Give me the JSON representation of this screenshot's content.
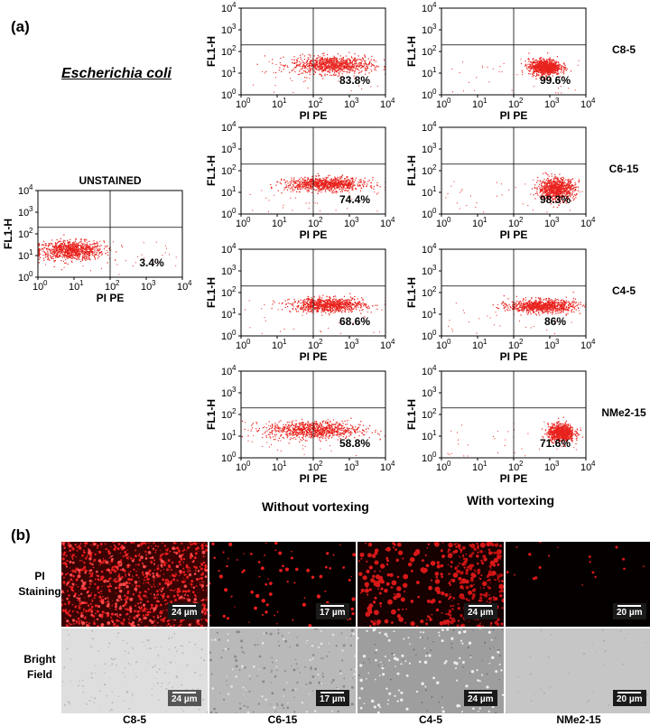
{
  "panel_a_label": "(a)",
  "panel_b_label": "(b)",
  "organism": "Escherichia coli",
  "col_without": "Without vortexing",
  "col_with": "With vortexing",
  "colors": {
    "dots": "#e8221d",
    "axis": "#000000"
  },
  "chart_data": [
    {
      "id": "unstained",
      "type": "scatter",
      "title": "UNSTAINED",
      "xlabel": "PI PE",
      "ylabel": "FL1-H",
      "x_scale": "log",
      "y_scale": "log",
      "xlim": [
        1,
        10000
      ],
      "ylim": [
        1,
        10000
      ],
      "x_gate": 100,
      "y_gate": 200,
      "percent": "3.4%",
      "population": {
        "x_center": 8,
        "y_center": 18,
        "x_spread_dec": 0.45,
        "y_spread_dec": 0.22
      }
    },
    {
      "id": "c8-5-without",
      "type": "scatter",
      "title": "",
      "xlabel": "PI PE",
      "ylabel": "FL1-H",
      "x_scale": "log",
      "y_scale": "log",
      "xlim": [
        1,
        10000
      ],
      "ylim": [
        1,
        10000
      ],
      "x_gate": 100,
      "y_gate": 200,
      "percent": "83.8%",
      "population": {
        "x_center": 320,
        "y_center": 25,
        "x_spread_dec": 0.55,
        "y_spread_dec": 0.2
      }
    },
    {
      "id": "c8-5-with",
      "type": "scatter",
      "title": "",
      "xlabel": "PI PE",
      "ylabel": "FL1-H",
      "side_label": "C8-5",
      "x_scale": "log",
      "y_scale": "log",
      "xlim": [
        1,
        10000
      ],
      "ylim": [
        1,
        10000
      ],
      "x_gate": 100,
      "y_gate": 200,
      "percent": "99.6%",
      "population": {
        "x_center": 700,
        "y_center": 20,
        "x_spread_dec": 0.22,
        "y_spread_dec": 0.18
      }
    },
    {
      "id": "c6-15-without",
      "type": "scatter",
      "title": "",
      "xlabel": "PI PE",
      "ylabel": "FL1-H",
      "x_scale": "log",
      "y_scale": "log",
      "xlim": [
        1,
        10000
      ],
      "ylim": [
        1,
        10000
      ],
      "x_gate": 100,
      "y_gate": 200,
      "percent": "74.4%",
      "population": {
        "x_center": 220,
        "y_center": 25,
        "x_spread_dec": 0.55,
        "y_spread_dec": 0.15
      }
    },
    {
      "id": "c6-15-with",
      "type": "scatter",
      "title": "",
      "xlabel": "PI PE",
      "ylabel": "FL1-H",
      "side_label": "C6-15",
      "x_scale": "log",
      "y_scale": "log",
      "xlim": [
        1,
        10000
      ],
      "ylim": [
        1,
        10000
      ],
      "x_gate": 100,
      "y_gate": 200,
      "percent": "98.3%",
      "population": {
        "x_center": 1500,
        "y_center": 15,
        "x_spread_dec": 0.25,
        "y_spread_dec": 0.25
      }
    },
    {
      "id": "c4-5-without",
      "type": "scatter",
      "title": "",
      "xlabel": "PI PE",
      "ylabel": "FL1-H",
      "x_scale": "log",
      "y_scale": "log",
      "xlim": [
        1,
        10000
      ],
      "ylim": [
        1,
        10000
      ],
      "x_gate": 100,
      "y_gate": 200,
      "percent": "68.6%",
      "population": {
        "x_center": 250,
        "y_center": 28,
        "x_spread_dec": 0.5,
        "y_spread_dec": 0.16
      }
    },
    {
      "id": "c4-5-with",
      "type": "scatter",
      "title": "",
      "xlabel": "PI PE",
      "ylabel": "FL1-H",
      "side_label": "C4-5",
      "x_scale": "log",
      "y_scale": "log",
      "xlim": [
        1,
        10000
      ],
      "ylim": [
        1,
        10000
      ],
      "x_gate": 100,
      "y_gate": 200,
      "percent": "86%",
      "population": {
        "x_center": 600,
        "y_center": 25,
        "x_spread_dec": 0.45,
        "y_spread_dec": 0.15
      }
    },
    {
      "id": "nme2-15-without",
      "type": "scatter",
      "title": "",
      "xlabel": "PI PE",
      "ylabel": "FL1-H",
      "x_scale": "log",
      "y_scale": "log",
      "xlim": [
        1,
        10000
      ],
      "ylim": [
        1,
        10000
      ],
      "x_gate": 100,
      "y_gate": 200,
      "percent": "58.8%",
      "population": {
        "x_center": 100,
        "y_center": 20,
        "x_spread_dec": 0.65,
        "y_spread_dec": 0.2
      }
    },
    {
      "id": "nme2-15-with",
      "type": "scatter",
      "title": "",
      "xlabel": "PI PE",
      "ylabel": "FL1-H",
      "side_label": "NMe2-15",
      "x_scale": "log",
      "y_scale": "log",
      "xlim": [
        1,
        10000
      ],
      "ylim": [
        1,
        10000
      ],
      "x_gate": 100,
      "y_gate": 200,
      "percent": "71.6%",
      "population": {
        "x_center": 2000,
        "y_center": 15,
        "x_spread_dec": 0.18,
        "y_spread_dec": 0.2
      }
    }
  ],
  "tick_labels": [
    "10",
    "0",
    "10",
    "1",
    "10",
    "2",
    "10",
    "3",
    "10",
    "4"
  ],
  "microscopy": {
    "row_pi": "PI\nStaining",
    "row_bf": "Bright\nField",
    "columns": [
      {
        "name": "C8-5",
        "scale": "24 µm"
      },
      {
        "name": "C6-15",
        "scale": "17 µm"
      },
      {
        "name": "C4-5",
        "scale": "24 µm"
      },
      {
        "name": "NMe2-15",
        "scale": "20 µm"
      }
    ]
  }
}
